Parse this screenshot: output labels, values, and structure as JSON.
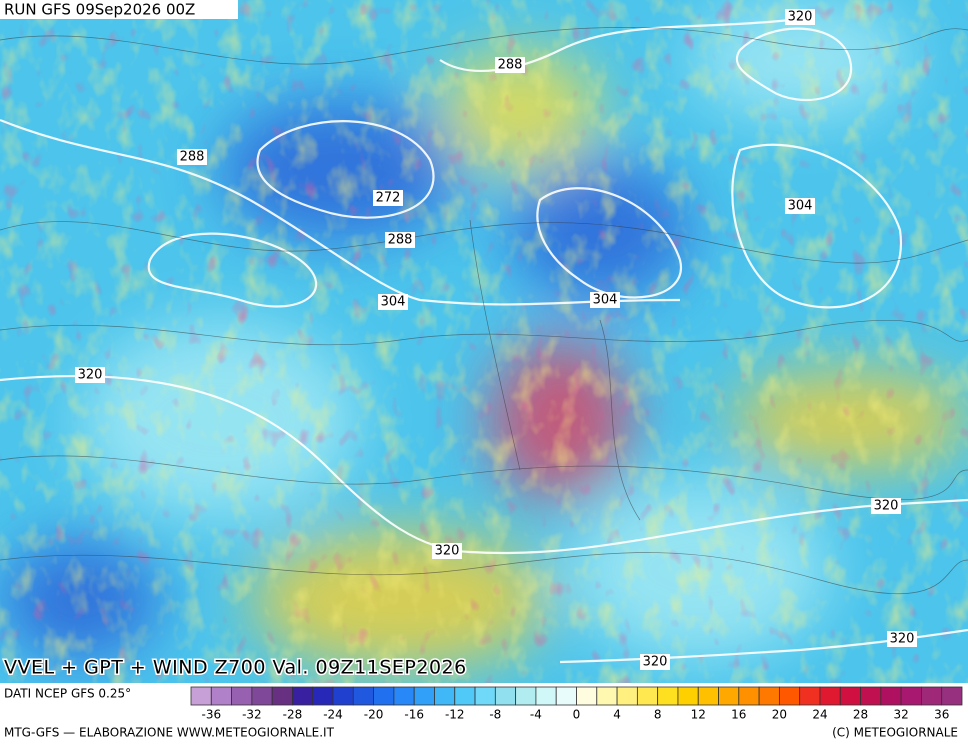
{
  "header": {
    "run": "RUN GFS 09Sep2026 00Z"
  },
  "map": {
    "title": "VVEL + GPT + WIND Z700 Val. 09Z11SEP2026",
    "contour_labels": [
      "320",
      "288",
      "288",
      "272",
      "304",
      "288",
      "304",
      "304",
      "320",
      "320",
      "320",
      "320",
      "320"
    ]
  },
  "legend": {
    "source": "DATI NCEP GFS 0.25°",
    "ticks": [
      -36,
      -32,
      -28,
      -24,
      -20,
      -16,
      -12,
      -8,
      -4,
      0,
      4,
      8,
      12,
      16,
      20,
      24,
      28,
      32,
      36
    ],
    "colors": [
      "#c8a0d8",
      "#b080c8",
      "#9860b0",
      "#804898",
      "#683080",
      "#3820a0",
      "#2828b8",
      "#2040d0",
      "#2058e0",
      "#2070f0",
      "#2888f8",
      "#30a0f8",
      "#40b8f8",
      "#50c8f8",
      "#70d8f8",
      "#90e0f0",
      "#b0ecf0",
      "#d0f8f8",
      "#e8fcfc",
      "#fffde0",
      "#fff8b0",
      "#fff080",
      "#ffe850",
      "#ffe020",
      "#ffd000",
      "#ffc000",
      "#ffa800",
      "#ff9000",
      "#ff7800",
      "#ff5800",
      "#f03020",
      "#e01830",
      "#d01040",
      "#c01050",
      "#b01060",
      "#a81870",
      "#a02878",
      "#983080"
    ]
  },
  "footer": {
    "left": "MTG-GFS — ELABORAZIONE WWW.METEOGIORNALE.IT",
    "right": "(C) METEOGIORNALE"
  }
}
